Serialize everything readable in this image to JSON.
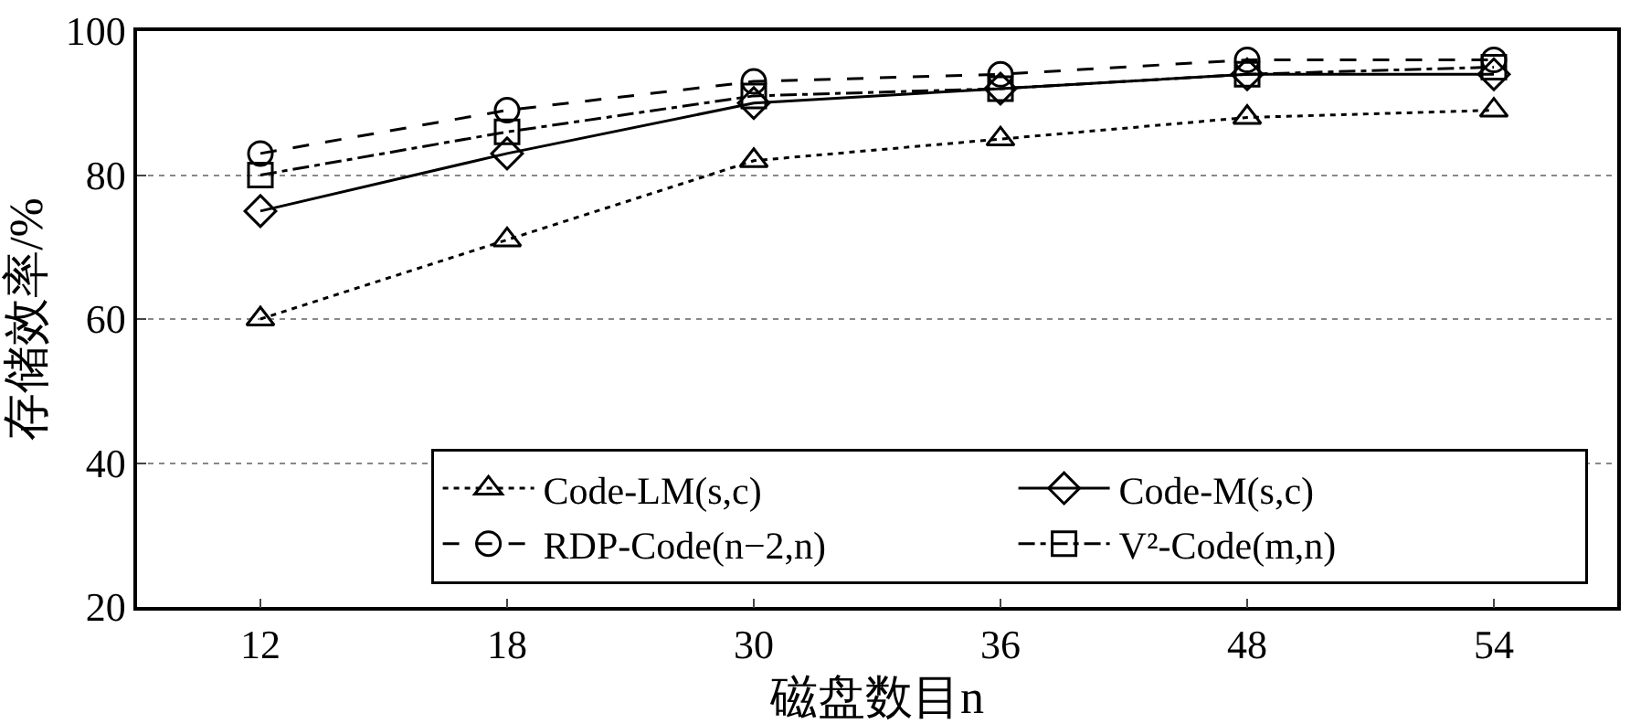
{
  "chart_data": {
    "type": "line",
    "xlabel": "磁盘数目n",
    "ylabel": "存储效率/%",
    "categories": [
      "12",
      "18",
      "30",
      "36",
      "48",
      "54"
    ],
    "series": [
      {
        "name": "Code-LM(s,c)",
        "color": "#000000",
        "marker": "triangle",
        "line_style": "dotted",
        "values": [
          60,
          71,
          82,
          85,
          88,
          89
        ]
      },
      {
        "name": "Code-M(s,c)",
        "color": "#000000",
        "marker": "diamond",
        "line_style": "solid",
        "values": [
          75,
          83,
          90,
          92,
          94,
          94
        ]
      },
      {
        "name": "RDP-Code(n−2,n)",
        "color": "#000000",
        "marker": "circle",
        "line_style": "dashed",
        "values": [
          83,
          89,
          93,
          94,
          96,
          96
        ]
      },
      {
        "name": "V²-Code(m,n)",
        "color": "#000000",
        "marker": "square",
        "line_style": "dashdot",
        "values": [
          80,
          86,
          91,
          92,
          94,
          95
        ]
      }
    ],
    "ylim": [
      20,
      100
    ],
    "yticks": [
      20,
      40,
      60,
      80,
      100
    ],
    "grid": "y",
    "legend": "bottom right"
  }
}
